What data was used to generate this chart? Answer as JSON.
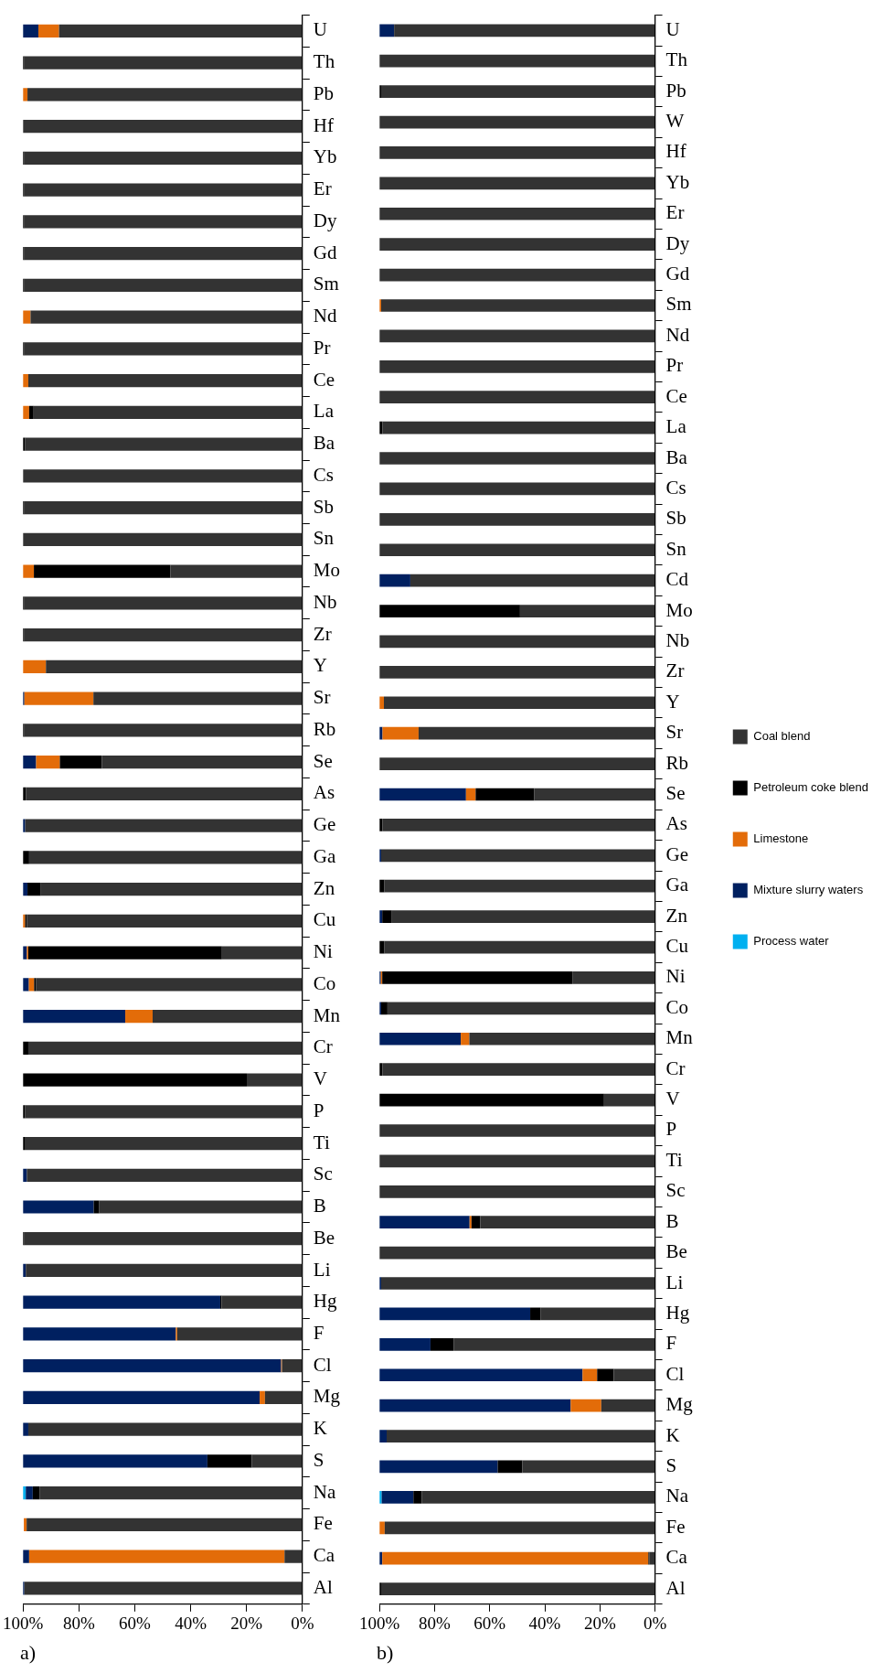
{
  "chart_data": [
    {
      "type": "bar",
      "title": "a)",
      "stacked": true,
      "orientation": "horizontal",
      "legend": false,
      "grid": false,
      "categories": [
        "U",
        "Th",
        "Pb",
        "Hf",
        "Yb",
        "Er",
        "Dy",
        "Gd",
        "Sm",
        "Nd",
        "Pr",
        "Ce",
        "La",
        "Ba",
        "Cs",
        "Sb",
        "Sn",
        "Mo",
        "Nb",
        "Zr",
        "Y",
        "Sr",
        "Rb",
        "Se",
        "As",
        "Ge",
        "Ga",
        "Zn",
        "Cu",
        "Ni",
        "Co",
        "Mn",
        "Cr",
        "V",
        "P",
        "Ti",
        "Sc",
        "B",
        "Be",
        "Li",
        "Hg",
        "F",
        "Cl",
        "Mg",
        "K",
        "S",
        "Na",
        "Fe",
        "Ca",
        "Al"
      ],
      "xlim": [
        100,
        0
      ],
      "xticks": [
        {
          "value": 100,
          "label": "100%"
        },
        {
          "value": 80,
          "label": "80%"
        },
        {
          "value": 60,
          "label": "60%"
        },
        {
          "value": 40,
          "label": "40%"
        },
        {
          "value": 20,
          "label": "20%"
        },
        {
          "value": 0,
          "label": "0%"
        }
      ],
      "series": [
        {
          "color": "#333333",
          "values": [
            87.1,
            99.5,
            98.4,
            100,
            99.5,
            99.5,
            99.5,
            99.5,
            99.5,
            97.3,
            99.5,
            98.1,
            96.2,
            99.2,
            100,
            99.5,
            100,
            47.2,
            99.5,
            99.5,
            91.8,
            74.8,
            99.5,
            71.8,
            98.9,
            99.2,
            97.8,
            93.6,
            98.6,
            28.8,
            95.4,
            53.6,
            98.1,
            19.9,
            99.2,
            99.4,
            98.6,
            72.7,
            99.5,
            99.0,
            28.9,
            44.8,
            7.3,
            13.4,
            98.1,
            18.1,
            94.1,
            98.7,
            6.4,
            99.5
          ]
        },
        {
          "color": "#000000",
          "values": [
            0,
            0.5,
            0,
            0,
            0.5,
            0.5,
            0.5,
            0.5,
            0.5,
            0,
            0.5,
            0,
            1.6,
            0.8,
            0,
            0.5,
            0,
            48.9,
            0.5,
            0.5,
            0,
            0,
            0.5,
            15.0,
            1.1,
            0,
            2.2,
            4.8,
            0.6,
            69.3,
            0.6,
            0,
            1.9,
            80.1,
            0.8,
            0.6,
            0,
            2.0,
            0.5,
            0,
            0.5,
            0,
            0,
            0,
            0,
            15.9,
            2.4,
            0,
            0,
            0
          ]
        },
        {
          "color": "#e36c09",
          "values": [
            7.4,
            0,
            1.6,
            0,
            0,
            0,
            0,
            0,
            0,
            2.7,
            0,
            1.9,
            2.2,
            0,
            0,
            0,
            0,
            3.9,
            0,
            0,
            8.2,
            24.7,
            0,
            8.5,
            0,
            0,
            0,
            0,
            0.8,
            0.5,
            1.9,
            9.8,
            0,
            0,
            0,
            0,
            0,
            0,
            0,
            0,
            0,
            0.5,
            0.3,
            1.9,
            0,
            0,
            0,
            1.0,
            91.4,
            0
          ]
        },
        {
          "color": "#002060",
          "values": [
            5.5,
            0,
            0,
            0,
            0,
            0,
            0,
            0,
            0,
            0,
            0,
            0,
            0,
            0,
            0,
            0,
            0,
            0,
            0,
            0,
            0,
            0.5,
            0,
            4.7,
            0,
            0.8,
            0,
            1.6,
            0,
            1.4,
            2.1,
            36.6,
            0,
            0,
            0,
            0,
            1.4,
            25.3,
            0,
            1.0,
            70.6,
            54.7,
            92.4,
            84.7,
            1.9,
            66.0,
            2.5,
            null,
            2.2,
            0.5
          ]
        },
        {
          "color": "#00b0f0",
          "values": [
            0,
            0,
            0,
            0,
            0,
            0,
            0,
            0,
            0,
            0,
            0,
            0,
            0,
            0,
            0,
            0,
            0,
            0,
            0,
            0,
            0,
            0,
            0,
            0,
            0,
            0,
            0,
            0,
            0,
            0,
            0,
            0,
            0,
            0,
            0,
            0,
            0,
            0,
            0,
            0,
            0,
            0,
            0,
            0,
            0,
            0,
            1.0,
            0,
            0,
            0
          ]
        }
      ]
    },
    {
      "type": "bar",
      "title": "b)",
      "stacked": true,
      "orientation": "horizontal",
      "legend": "right",
      "grid": false,
      "categories": [
        "U",
        "Th",
        "Pb",
        "W",
        "Hf",
        "Yb",
        "Er",
        "Dy",
        "Gd",
        "Sm",
        "Nd",
        "Pr",
        "Ce",
        "La",
        "Ba",
        "Cs",
        "Sb",
        "Sn",
        "Cd",
        "Mo",
        "Nb",
        "Zr",
        "Y",
        "Sr",
        "Rb",
        "Se",
        "As",
        "Ge",
        "Ga",
        "Zn",
        "Cu",
        "Ni",
        "Co",
        "Mn",
        "Cr",
        "V",
        "P",
        "Ti",
        "Sc",
        "B",
        "Be",
        "Li",
        "Hg",
        "F",
        "Cl",
        "Mg",
        "K",
        "S",
        "Na",
        "Fe",
        "Ca",
        "Al"
      ],
      "xlim": [
        100,
        0
      ],
      "xticks": [
        {
          "value": 100,
          "label": "100%"
        },
        {
          "value": 80,
          "label": "80%"
        },
        {
          "value": 60,
          "label": "60%"
        },
        {
          "value": 40,
          "label": "40%"
        },
        {
          "value": 20,
          "label": "20%"
        },
        {
          "value": 0,
          "label": "0%"
        }
      ],
      "series": [
        {
          "name": "Coal blend",
          "color": "#333333",
          "values": [
            94.7,
            100,
            99.4,
            100,
            100,
            100,
            100,
            100,
            100,
            99.4,
            100,
            100,
            100,
            98.9,
            100,
            100,
            100,
            100,
            88.8,
            49.0,
            100,
            100,
            98.4,
            85.8,
            100,
            43.9,
            98.9,
            99.4,
            98.2,
            95.5,
            98.2,
            30.0,
            97.1,
            67.4,
            98.9,
            18.5,
            100,
            100,
            100,
            63.4,
            100,
            99.4,
            41.6,
            73.1,
            15.0,
            19.5,
            97.4,
            48.2,
            84.7,
            98.1,
            2.1,
            99.4
          ]
        },
        {
          "name": "Petroleum coke blend",
          "color": "#000000",
          "values": [
            0,
            0,
            0.6,
            0,
            0,
            0,
            0,
            0,
            0,
            0,
            0,
            0,
            0,
            1.1,
            0,
            0,
            0,
            0,
            0,
            51.0,
            0,
            0,
            0,
            0,
            0,
            21.2,
            1.1,
            0,
            1.8,
            3.5,
            1.8,
            69.0,
            2.3,
            0,
            1.1,
            81.5,
            0,
            0,
            0,
            3.2,
            0,
            0,
            3.7,
            8.4,
            6.0,
            0,
            0,
            8.9,
            3.0,
            0,
            0.3,
            0.6
          ]
        },
        {
          "name": "Limestone",
          "color": "#e36c09",
          "values": [
            0,
            0,
            0,
            0,
            0,
            0,
            0,
            0,
            0,
            0.6,
            0,
            0,
            0,
            0,
            0,
            0,
            0,
            0,
            0,
            0,
            0,
            0,
            1.6,
            13.1,
            0,
            3.5,
            0,
            0,
            0,
            0,
            0,
            0.5,
            0,
            3.1,
            0,
            0,
            0,
            0,
            0,
            0.7,
            0,
            0,
            0,
            0,
            5.3,
            11.1,
            0,
            0,
            0,
            1.9,
            96.6,
            0
          ]
        },
        {
          "name": "Mixture slurry waters",
          "color": "#002060",
          "values": [
            5.3,
            0,
            0,
            0,
            0,
            0,
            0,
            0,
            0,
            0,
            0,
            0,
            0,
            0,
            0,
            0,
            0,
            0,
            11.2,
            0,
            0,
            0,
            0,
            1.1,
            0,
            31.4,
            0,
            0.6,
            0,
            1.0,
            0,
            0.5,
            0.6,
            29.5,
            0,
            0,
            0,
            0,
            0,
            32.7,
            0,
            0.6,
            54.7,
            18.5,
            73.7,
            69.4,
            2.6,
            42.9,
            11.5,
            0,
            1.0,
            0
          ]
        },
        {
          "name": "Process water",
          "color": "#00b0f0",
          "values": [
            0,
            0,
            0,
            0,
            0,
            0,
            0,
            0,
            0,
            0,
            0,
            0,
            0,
            0,
            0,
            0,
            0,
            0,
            0,
            0,
            0,
            0,
            0,
            0,
            0,
            0,
            0,
            0,
            0,
            0,
            0,
            0,
            0,
            0,
            0,
            0,
            0,
            0,
            0,
            0,
            0,
            0,
            0,
            0,
            0,
            0,
            0,
            0,
            0.8,
            0,
            0,
            0
          ]
        }
      ]
    }
  ]
}
